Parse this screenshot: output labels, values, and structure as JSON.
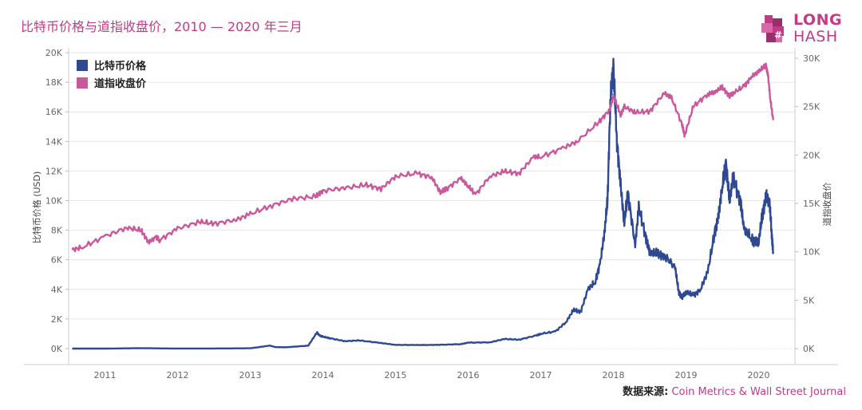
{
  "title": "比特币价格与道指收盘价，2010 — 2020 年三月",
  "logo": {
    "line1": "LONG",
    "line2": "HASH"
  },
  "source": {
    "label": "数据来源:",
    "name": "Coin Metrics & Wall Street Journal"
  },
  "colors": {
    "btc": "#2e4891",
    "dow": "#c9599c",
    "accent": "#c33a86",
    "grid": "#e6e6e6",
    "axis": "#666666"
  },
  "chart_data": {
    "type": "line",
    "title": "比特币价格与道指收盘价，2010 — 2020 年三月",
    "xlabel": "",
    "ylabel": "比特币价格 (USD)",
    "y2label": "道指收盘价",
    "ylim": [
      0,
      20000
    ],
    "y2lim": [
      0,
      30000
    ],
    "xlim": [
      2010.5,
      2020.5
    ],
    "x_ticks": [
      "2011",
      "2012",
      "2013",
      "2014",
      "2015",
      "2016",
      "2017",
      "2018",
      "2019",
      "2020"
    ],
    "y_ticks": [
      "0K",
      "2K",
      "4K",
      "6K",
      "8K",
      "10K",
      "12K",
      "14K",
      "16K",
      "18K",
      "20K"
    ],
    "y2_ticks": [
      "0K",
      "5K",
      "10K",
      "15K",
      "20K",
      "25K",
      "30K"
    ],
    "grid": true,
    "legend": "top-left",
    "series": [
      {
        "name": "比特币价格",
        "axis": "left",
        "x": [
          2010.55,
          2011.0,
          2011.45,
          2012.0,
          2012.5,
          2013.0,
          2013.27,
          2013.35,
          2013.5,
          2013.8,
          2013.92,
          2013.95,
          2014.0,
          2014.1,
          2014.3,
          2014.5,
          2014.8,
          2015.0,
          2015.3,
          2015.6,
          2015.9,
          2016.0,
          2016.3,
          2016.5,
          2016.7,
          2016.95,
          2017.0,
          2017.2,
          2017.35,
          2017.45,
          2017.55,
          2017.65,
          2017.75,
          2017.82,
          2017.88,
          2017.92,
          2017.96,
          2018.0,
          2018.05,
          2018.1,
          2018.15,
          2018.2,
          2018.3,
          2018.35,
          2018.45,
          2018.5,
          2018.6,
          2018.7,
          2018.85,
          2018.9,
          2018.95,
          2019.0,
          2019.1,
          2019.2,
          2019.3,
          2019.4,
          2019.45,
          2019.5,
          2019.55,
          2019.6,
          2019.65,
          2019.75,
          2019.8,
          2019.9,
          2019.95,
          2020.0,
          2020.05,
          2020.1,
          2020.15,
          2020.18,
          2020.2
        ],
        "values": [
          0,
          0,
          25,
          5,
          8,
          20,
          200,
          100,
          90,
          200,
          1100,
          900,
          800,
          700,
          500,
          550,
          380,
          250,
          240,
          250,
          300,
          400,
          420,
          650,
          600,
          900,
          1000,
          1150,
          1800,
          2600,
          2500,
          4000,
          4500,
          5800,
          8000,
          10000,
          17000,
          19000,
          14000,
          11000,
          8500,
          10500,
          7000,
          9500,
          7500,
          6500,
          6400,
          6300,
          5500,
          3800,
          3500,
          3800,
          3600,
          4000,
          5200,
          8000,
          9000,
          11000,
          12500,
          10000,
          11500,
          10000,
          8000,
          7500,
          7200,
          7200,
          9000,
          10300,
          9800,
          7800,
          6500
        ]
      },
      {
        "name": "道指收盘价",
        "axis": "right",
        "x": [
          2010.55,
          2010.7,
          2011.0,
          2011.3,
          2011.5,
          2011.6,
          2011.7,
          2011.75,
          2012.0,
          2012.3,
          2012.5,
          2012.8,
          2013.0,
          2013.3,
          2013.6,
          2013.9,
          2014.0,
          2014.3,
          2014.6,
          2014.8,
          2015.0,
          2015.3,
          2015.5,
          2015.62,
          2015.7,
          2015.9,
          2016.0,
          2016.1,
          2016.3,
          2016.5,
          2016.7,
          2016.9,
          2017.0,
          2017.3,
          2017.5,
          2017.8,
          2017.95,
          2018.0,
          2018.1,
          2018.15,
          2018.3,
          2018.5,
          2018.7,
          2018.8,
          2018.95,
          2018.98,
          2019.1,
          2019.3,
          2019.4,
          2019.5,
          2019.6,
          2019.65,
          2019.8,
          2019.9,
          2020.0,
          2020.1,
          2020.13,
          2020.16,
          2020.2
        ],
        "values": [
          10200,
          10500,
          11600,
          12500,
          12200,
          11000,
          11500,
          11200,
          12400,
          13100,
          12900,
          13300,
          13900,
          14800,
          15500,
          15700,
          16300,
          16600,
          16900,
          16500,
          17800,
          18100,
          17700,
          16100,
          16500,
          17600,
          16800,
          15900,
          17800,
          18300,
          18100,
          19800,
          19800,
          20700,
          21400,
          23400,
          24700,
          26100,
          24200,
          25000,
          24400,
          24500,
          26400,
          25900,
          23100,
          22000,
          25000,
          26300,
          26500,
          27000,
          26100,
          26400,
          27100,
          28100,
          28600,
          29300,
          28200,
          25800,
          23600
        ]
      }
    ]
  }
}
